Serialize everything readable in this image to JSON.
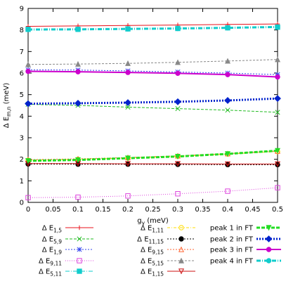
{
  "chart_data": {
    "type": "line",
    "xlabel_main": "g",
    "xlabel_sub": "γ",
    "xlabel_unit": " (meV)",
    "ylabel_main": "Δ E",
    "ylabel_sub": "m,n",
    "ylabel_unit": " (meV)",
    "xlim": [
      0,
      0.5
    ],
    "ylim": [
      0,
      9
    ],
    "x_ticks": [
      0,
      0.05,
      0.1,
      0.15,
      0.2,
      0.25,
      0.3,
      0.35,
      0.4,
      0.45,
      0.5
    ],
    "x_tick_labels": [
      "0",
      "0.05",
      "0.1",
      "0.15",
      "0.2",
      "0.25",
      "0.3",
      "0.35",
      "0.4",
      "0.45",
      "0.5"
    ],
    "y_ticks": [
      0,
      1,
      2,
      3,
      4,
      5,
      6,
      7,
      8,
      9
    ],
    "y_tick_labels": [
      "0",
      "1",
      "2",
      "3",
      "4",
      "5",
      "6",
      "7",
      "8",
      "9"
    ],
    "grid": false,
    "legend_position": "bottom",
    "x": [
      0,
      0.1,
      0.2,
      0.3,
      0.4,
      0.5
    ],
    "series": [
      {
        "label_main": "Δ E",
        "label_sub": "1,5",
        "color": "#e8111b",
        "dash": "",
        "marker": "plus",
        "values": [
          8.17,
          8.19,
          8.21,
          8.23,
          8.26,
          8.28
        ]
      },
      {
        "label_main": "Δ E",
        "label_sub": "5,9",
        "color": "#22bb22",
        "dash": "4,2",
        "marker": "cross",
        "values": [
          4.55,
          4.5,
          4.42,
          4.35,
          4.28,
          4.18
        ]
      },
      {
        "label_main": "Δ E",
        "label_sub": "1,9",
        "color": "#3344ee",
        "dash": "2,2",
        "marker": "star",
        "values": [
          6.15,
          6.14,
          6.1,
          6.05,
          6.0,
          5.93
        ]
      },
      {
        "label_main": "Δ E",
        "label_sub": "9,11",
        "color": "#dd44dd",
        "dash": "1,2",
        "marker": "square-open",
        "values": [
          0.22,
          0.24,
          0.3,
          0.4,
          0.52,
          0.68
        ]
      },
      {
        "label_main": "Δ E",
        "label_sub": "5,11",
        "color": "#11cccc",
        "dash": "6,2,1,2",
        "marker": "square-filled",
        "values": [
          8.03,
          8.03,
          8.05,
          8.07,
          8.1,
          8.13
        ]
      },
      {
        "label_main": "Δ E",
        "label_sub": "1,11",
        "color": "#ffdd00",
        "dash": "4,2,1,2",
        "marker": "circle-open",
        "values": [
          1.96,
          2.0,
          2.06,
          2.14,
          2.24,
          2.36
        ]
      },
      {
        "label_main": "Δ E",
        "label_sub": "11,15",
        "color": "#000000",
        "dash": "2,2",
        "marker": "circle-filled",
        "values": [
          1.78,
          1.77,
          1.77,
          1.76,
          1.75,
          1.75
        ]
      },
      {
        "label_main": "Δ E",
        "label_sub": "9,15",
        "color": "#ff6633",
        "dash": "2,2",
        "marker": "triangle-open",
        "values": [
          1.98,
          2.02,
          2.08,
          2.16,
          2.26,
          2.38
        ]
      },
      {
        "label_main": "Δ E",
        "label_sub": "5,15",
        "color": "#888888",
        "dash": "3,2",
        "marker": "triangle-filled",
        "values": [
          6.4,
          6.42,
          6.45,
          6.5,
          6.56,
          6.63
        ]
      },
      {
        "label_main": "Δ E",
        "label_sub": "1,15",
        "color": "#cc1111",
        "dash": "",
        "marker": "triangle-down-open",
        "values": [
          1.8,
          1.8,
          1.79,
          1.79,
          1.78,
          1.78
        ]
      },
      {
        "label_main": "peak 1 in FT",
        "label_sub": "",
        "color": "#22dd22",
        "dash": "5,2",
        "width": 3,
        "marker": "triangle-down-filled",
        "values": [
          1.93,
          1.97,
          2.05,
          2.13,
          2.25,
          2.4
        ]
      },
      {
        "label_main": "peak 2 in FT",
        "label_sub": "",
        "color": "#0022cc",
        "dash": "2,2",
        "width": 3,
        "marker": "diamond-filled",
        "values": [
          4.58,
          4.6,
          4.63,
          4.67,
          4.73,
          4.82
        ]
      },
      {
        "label_main": "peak 3 in FT",
        "label_sub": "",
        "color": "#cc00cc",
        "dash": "",
        "width": 2,
        "marker": "circle-filled",
        "values": [
          6.08,
          6.06,
          6.03,
          5.99,
          5.93,
          5.82
        ]
      },
      {
        "label_main": "peak 4 in FT",
        "label_sub": "",
        "color": "#11cccc",
        "dash": "6,2,1,2",
        "width": 3,
        "marker": "circle-filled",
        "values": [
          8.02,
          8.03,
          8.05,
          8.07,
          8.1,
          8.14
        ]
      }
    ]
  }
}
